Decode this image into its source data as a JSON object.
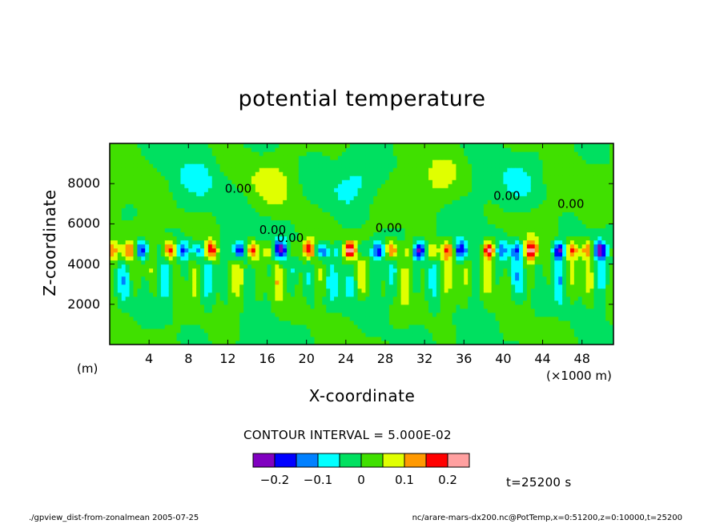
{
  "chart_data": {
    "type": "heatmap",
    "title": "potential temperature",
    "xlabel": "X-coordinate",
    "ylabel": "Z-coordinate",
    "x_unit_label": "(m)",
    "x_multiplier_label": "(×1000 m)",
    "xlim": [
      0,
      51.2
    ],
    "ylim": [
      0,
      10000
    ],
    "x_ticks": [
      "4",
      "8",
      "12",
      "16",
      "20",
      "24",
      "28",
      "32",
      "36",
      "40",
      "44",
      "48"
    ],
    "x_tick_values": [
      4,
      8,
      12,
      16,
      20,
      24,
      28,
      32,
      36,
      40,
      44,
      48
    ],
    "y_ticks": [
      "2000",
      "4000",
      "6000",
      "8000"
    ],
    "y_tick_values": [
      2000,
      4000,
      6000,
      8000
    ],
    "contour_labels": [
      "0.00",
      "0.00",
      "0.00",
      "0.00",
      "0.00",
      "0.00"
    ],
    "contour_interval_text": "CONTOUR INTERVAL = 5.000E-02",
    "time_text": "t=25200 s",
    "colorbar": {
      "levels": [
        -0.25,
        -0.2,
        -0.15,
        -0.1,
        -0.05,
        0,
        0.05,
        0.1,
        0.15,
        0.2,
        0.25
      ],
      "colors": [
        "#8000c0",
        "#0000ff",
        "#0080ff",
        "#00ffff",
        "#00e060",
        "#40e000",
        "#e0ff00",
        "#ff9900",
        "#ff0000",
        "#ffa0a0"
      ],
      "tick_labels": [
        "-0.2",
        "-0.1",
        "0",
        "0.1",
        "0.2"
      ],
      "tick_values": [
        -0.2,
        -0.1,
        0,
        0.1,
        0.2
      ]
    },
    "grid": false
  },
  "footer": {
    "left": "./gpview_dist-from-zonalmean  2005-07-25",
    "right": "nc/arare-mars-dx200.nc@PotTemp,x=0:51200,z=0:10000,t=25200"
  }
}
